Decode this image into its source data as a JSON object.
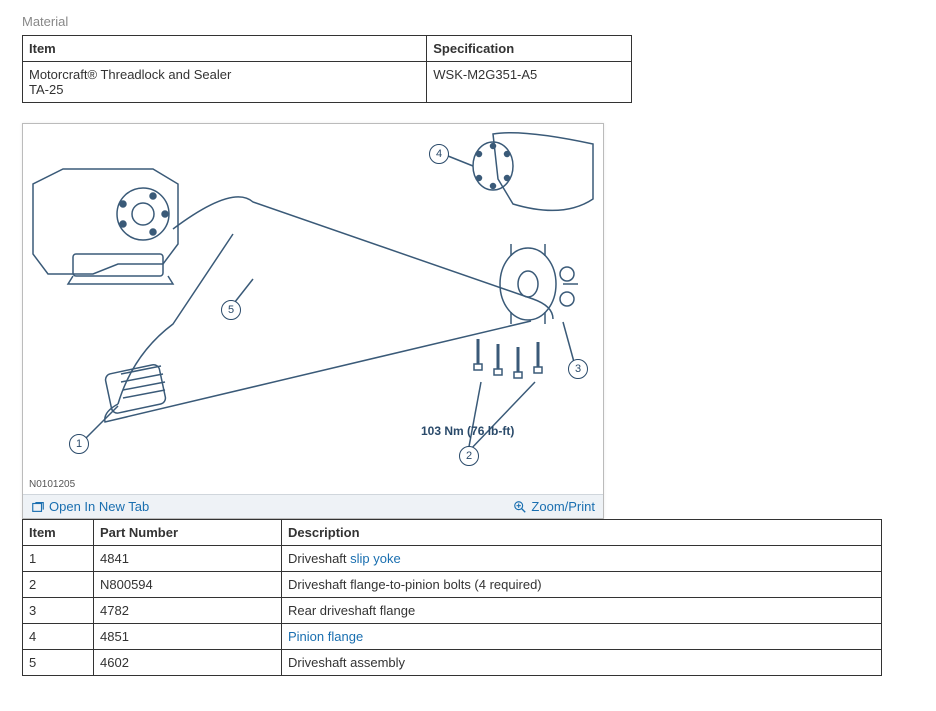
{
  "material": {
    "section_label": "Material",
    "headers": {
      "item": "Item",
      "spec": "Specification"
    },
    "row": {
      "item_line1": "Motorcraft® Threadlock and Sealer",
      "item_line2": "TA-25",
      "spec": "WSK-M2G351-A5"
    }
  },
  "diagram": {
    "id": "N0101205",
    "torque": "103 Nm (76 lb-ft)",
    "callouts": [
      "1",
      "2",
      "3",
      "4",
      "5"
    ],
    "stroke": "#3a5a78",
    "toolbar": {
      "open_label": "Open In New Tab",
      "zoom_label": "Zoom/Print"
    }
  },
  "parts": {
    "headers": {
      "item": "Item",
      "part": "Part Number",
      "desc": "Description"
    },
    "rows": [
      {
        "item": "1",
        "part": "4841",
        "desc_prefix": "Driveshaft ",
        "desc_link": "slip yoke",
        "desc_suffix": ""
      },
      {
        "item": "2",
        "part": "N800594",
        "desc_prefix": "Driveshaft flange-to-pinion bolts (4 required)",
        "desc_link": "",
        "desc_suffix": ""
      },
      {
        "item": "3",
        "part": "4782",
        "desc_prefix": "Rear driveshaft flange",
        "desc_link": "",
        "desc_suffix": ""
      },
      {
        "item": "4",
        "part": "4851",
        "desc_prefix": "",
        "desc_link": "Pinion flange",
        "desc_suffix": ""
      },
      {
        "item": "5",
        "part": "4602",
        "desc_prefix": "Driveshaft assembly",
        "desc_link": "",
        "desc_suffix": ""
      }
    ]
  }
}
